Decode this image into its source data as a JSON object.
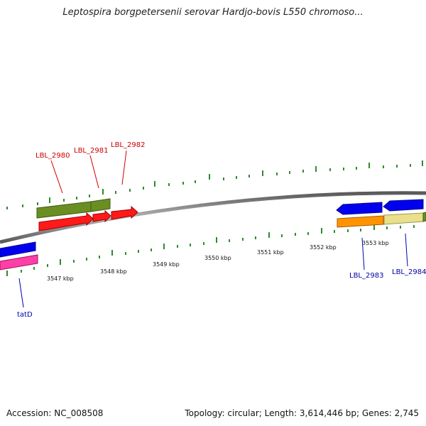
{
  "header": {
    "title": "Leptospira borgpetersenii serovar Hardjo-bovis L550 chromoso..."
  },
  "footer": {
    "accession": "Accession: NC_008508",
    "stats": "Topology: circular; Length: 3,614,446 bp; Genes: 2,745"
  },
  "colors": {
    "backbone": "#8a8a8a",
    "ticks": "#2e8b2e",
    "top_strand_label": "#cc0000",
    "bottom_strand_label": "#0000aa"
  },
  "map": {
    "scale_labels": [
      "3547 kbp",
      "3548 kbp",
      "3549 kbp",
      "3550 kbp",
      "3551 kbp",
      "3552 kbp",
      "3553 kbp"
    ],
    "gene_labels": {
      "lbl_2980": "LBL_2980",
      "lbl_2981": "LBL_2981",
      "lbl_2982": "LBL_2982",
      "lbl_2983": "LBL_2983",
      "lbl_2984": "LBL_2984",
      "tatd": "tatD"
    }
  }
}
